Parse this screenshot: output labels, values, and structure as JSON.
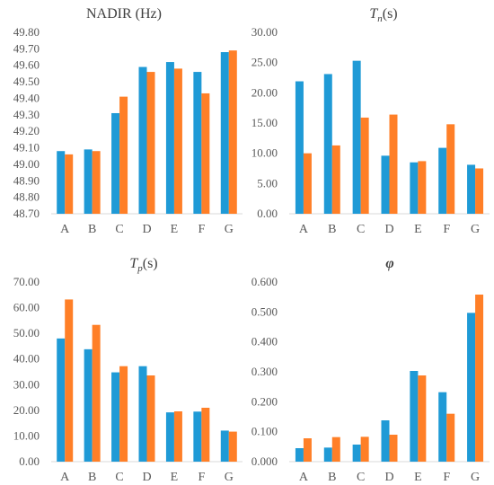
{
  "chart_data": [
    {
      "type": "bar",
      "title": "NADIR (Hz)",
      "categories": [
        "A",
        "B",
        "C",
        "D",
        "E",
        "F",
        "G"
      ],
      "ylim": [
        48.7,
        49.8
      ],
      "yticks": [
        "49.80",
        "49.70",
        "49.60",
        "49.50",
        "49.40",
        "49.30",
        "49.20",
        "49.10",
        "49.00",
        "48.90",
        "48.80",
        "48.70"
      ],
      "grid": false,
      "legend": "none",
      "series": [
        {
          "values": [
            49.08,
            49.09,
            49.31,
            49.59,
            49.62,
            49.56,
            49.68
          ],
          "color": "#1f9ad6"
        },
        {
          "values": [
            49.06,
            49.08,
            49.41,
            49.56,
            49.58,
            49.43,
            49.69
          ],
          "color": "#ff7f27"
        }
      ]
    },
    {
      "type": "bar",
      "title": "Tn(s)",
      "title_parts": {
        "main": "T",
        "sub": "n",
        "rest": "(s)"
      },
      "categories": [
        "A",
        "B",
        "C",
        "D",
        "E",
        "F",
        "G"
      ],
      "ylim": [
        0,
        30
      ],
      "yticks": [
        "30.00",
        "25.00",
        "20.00",
        "15.00",
        "10.00",
        "5.00",
        "0.00"
      ],
      "grid": false,
      "legend": "none",
      "series": [
        {
          "values": [
            21.9,
            23.1,
            25.3,
            9.6,
            8.5,
            10.9,
            8.1
          ],
          "color": "#1f9ad6"
        },
        {
          "values": [
            10.0,
            11.3,
            15.9,
            16.4,
            8.7,
            14.8,
            7.5
          ],
          "color": "#ff7f27"
        }
      ]
    },
    {
      "type": "bar",
      "title": "Tp(s)",
      "title_parts": {
        "main": "T",
        "sub": "p",
        "rest": "(s)"
      },
      "categories": [
        "A",
        "B",
        "C",
        "D",
        "E",
        "F",
        "G"
      ],
      "ylim": [
        0,
        70
      ],
      "yticks": [
        "70.00",
        "60.00",
        "50.00",
        "40.00",
        "30.00",
        "20.00",
        "10.00",
        "0.00"
      ],
      "grid": false,
      "legend": "none",
      "series": [
        {
          "values": [
            48.0,
            43.8,
            34.8,
            37.2,
            19.2,
            19.5,
            12.1
          ],
          "color": "#1f9ad6"
        },
        {
          "values": [
            63.2,
            53.3,
            37.2,
            33.6,
            19.6,
            21.0,
            11.7
          ],
          "color": "#ff7f27"
        }
      ]
    },
    {
      "type": "bar",
      "title": "φ",
      "categories": [
        "A",
        "B",
        "C",
        "D",
        "E",
        "F",
        "G"
      ],
      "ylim": [
        0,
        0.6
      ],
      "yticks": [
        "0.600",
        "0.500",
        "0.400",
        "0.300",
        "0.200",
        "0.100",
        "0.000"
      ],
      "grid": false,
      "legend": "none",
      "series": [
        {
          "values": [
            0.045,
            0.047,
            0.057,
            0.138,
            0.303,
            0.232,
            0.497
          ],
          "color": "#1f9ad6"
        },
        {
          "values": [
            0.078,
            0.082,
            0.083,
            0.09,
            0.288,
            0.16,
            0.558
          ],
          "color": "#ff7f27"
        }
      ]
    }
  ]
}
